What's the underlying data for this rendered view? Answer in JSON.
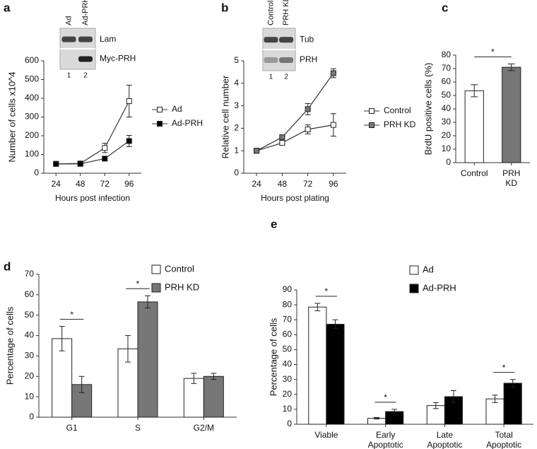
{
  "chart_data": [
    {
      "type": "line",
      "label": "a",
      "xlabel": "Hours post infection",
      "ylabel": "Number of cells x10^4",
      "categories": [
        "24",
        "48",
        "72",
        "96"
      ],
      "ylim": [
        0,
        600
      ],
      "yticks": [
        0,
        100,
        200,
        300,
        400,
        500,
        600
      ],
      "series": [
        {
          "name": "Ad",
          "color": "#ffffff",
          "values": [
            50,
            52,
            135,
            385
          ],
          "errors": [
            0,
            6,
            25,
            85
          ]
        },
        {
          "name": "Ad-PRH",
          "color": "#000000",
          "values": [
            50,
            50,
            78,
            172
          ],
          "errors": [
            0,
            6,
            12,
            30
          ]
        }
      ],
      "inset": {
        "lanes": [
          "Ad",
          "Ad-PRH"
        ],
        "bands": [
          "Lam",
          "Myc-PRH"
        ],
        "numbers": [
          "1",
          "2"
        ]
      }
    },
    {
      "type": "line",
      "label": "b",
      "xlabel": "Hours post plating",
      "ylabel": "Relative cell number",
      "categories": [
        "24",
        "48",
        "72",
        "96"
      ],
      "ylim": [
        0,
        5
      ],
      "yticks": [
        0,
        1,
        2,
        3,
        4,
        5
      ],
      "series": [
        {
          "name": "Control",
          "color": "#ffffff",
          "values": [
            1,
            1.35,
            1.95,
            2.15
          ],
          "errors": [
            0,
            0.05,
            0.2,
            0.5
          ]
        },
        {
          "name": "PRH KD",
          "color": "#777777",
          "values": [
            1,
            1.6,
            2.85,
            4.45
          ],
          "errors": [
            0,
            0.05,
            0.25,
            0.2
          ]
        }
      ],
      "inset": {
        "lanes": [
          "Control",
          "PRH KD"
        ],
        "bands": [
          "Tub",
          "PRH"
        ],
        "numbers": [
          "1",
          "2"
        ]
      }
    },
    {
      "type": "bar",
      "label": "c",
      "ylabel": "BrdU positive cells (%)",
      "categories": [
        "Control",
        "PRH KD"
      ],
      "ylim": [
        0,
        80
      ],
      "yticks": [
        0,
        10,
        20,
        30,
        40,
        50,
        60,
        70,
        80
      ],
      "values": [
        53.5,
        71
      ],
      "errors": [
        4.5,
        2.5
      ],
      "colors": [
        "#ffffff",
        "#777777"
      ],
      "significance": "*"
    },
    {
      "type": "grouped-bar",
      "label": "d",
      "ylabel": "Percentage of cells",
      "categories": [
        "G1",
        "S",
        "G2/M"
      ],
      "ylim": [
        0,
        70
      ],
      "yticks": [
        0,
        10,
        20,
        30,
        40,
        50,
        60,
        70
      ],
      "series": [
        {
          "name": "Control",
          "color": "#ffffff",
          "values": [
            38.5,
            33.5,
            19
          ],
          "errors": [
            6,
            6.5,
            2.5
          ]
        },
        {
          "name": "PRH KD",
          "color": "#777777",
          "values": [
            16,
            56.5,
            20
          ],
          "errors": [
            4,
            3,
            1.5
          ]
        }
      ],
      "significance": [
        "*",
        "*",
        null
      ]
    },
    {
      "type": "grouped-bar",
      "label": "e",
      "ylabel": "Percentage of cells",
      "categories": [
        "Viable",
        "Early Apoptotic",
        "Late Apoptotic",
        "Total Apoptotic"
      ],
      "ylim": [
        0,
        90
      ],
      "yticks": [
        0,
        10,
        20,
        30,
        40,
        50,
        60,
        70,
        80,
        90
      ],
      "series": [
        {
          "name": "Ad",
          "color": "#ffffff",
          "values": [
            78.5,
            4,
            12.5,
            17
          ],
          "errors": [
            2.5,
            0.5,
            2,
            2.5
          ]
        },
        {
          "name": "Ad-PRH",
          "color": "#000000",
          "values": [
            67,
            8.5,
            18.5,
            27.5
          ],
          "errors": [
            3,
            1.5,
            4,
            2.5
          ]
        }
      ],
      "significance": [
        "*",
        "*",
        null,
        "*"
      ]
    }
  ]
}
